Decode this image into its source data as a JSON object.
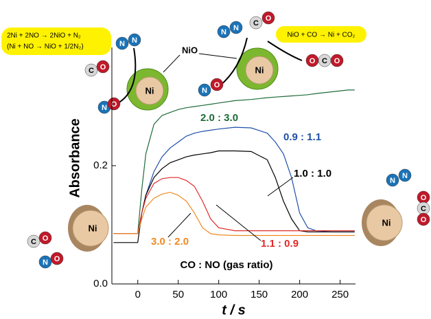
{
  "chart_data": {
    "type": "line",
    "x_label": "t / s",
    "y_label": "Absorbance",
    "annotation": "CO : NO (gas ratio)",
    "x": [
      -30,
      -10,
      0,
      5,
      10,
      20,
      30,
      40,
      50,
      60,
      70,
      80,
      90,
      100,
      120,
      140,
      160,
      170,
      180,
      190,
      200,
      210,
      220,
      240,
      260,
      268
    ],
    "series": [
      {
        "name": "2.0 : 3.0",
        "color": "#1e6b3a",
        "values": [
          0.085,
          0.085,
          0.085,
          0.16,
          0.22,
          0.27,
          0.285,
          0.29,
          0.295,
          0.298,
          0.3,
          0.302,
          0.304,
          0.306,
          0.31,
          0.312,
          0.315,
          0.316,
          0.317,
          0.318,
          0.319,
          0.32,
          0.322,
          0.325,
          0.328,
          0.328
        ]
      },
      {
        "name": "0.9 : 1.1",
        "color": "#1f4fa8",
        "values": [
          0.085,
          0.085,
          0.085,
          0.12,
          0.15,
          0.19,
          0.215,
          0.23,
          0.24,
          0.25,
          0.255,
          0.258,
          0.26,
          0.262,
          0.265,
          0.264,
          0.255,
          0.24,
          0.22,
          0.18,
          0.12,
          0.095,
          0.09,
          0.088,
          0.088,
          0.088
        ]
      },
      {
        "name": "1.0 : 1.0",
        "color": "#000000",
        "values": [
          0.07,
          0.07,
          0.07,
          0.12,
          0.15,
          0.18,
          0.195,
          0.205,
          0.21,
          0.215,
          0.218,
          0.22,
          0.222,
          0.225,
          0.225,
          0.224,
          0.21,
          0.18,
          0.14,
          0.11,
          0.09,
          0.088,
          0.088,
          0.088,
          0.088,
          0.088
        ]
      },
      {
        "name": "1.1 : 0.9",
        "color": "#e02a2a",
        "values": [
          0.085,
          0.085,
          0.085,
          0.12,
          0.145,
          0.17,
          0.178,
          0.18,
          0.18,
          0.175,
          0.165,
          0.14,
          0.11,
          0.095,
          0.09,
          0.09,
          0.09,
          0.09,
          0.09,
          0.09,
          0.09,
          0.09,
          0.09,
          0.09,
          0.09,
          0.09
        ]
      },
      {
        "name": "3.0 : 2.0",
        "color": "#f08a24",
        "values": [
          0.085,
          0.085,
          0.085,
          0.11,
          0.13,
          0.145,
          0.152,
          0.155,
          0.15,
          0.14,
          0.12,
          0.095,
          0.085,
          0.083,
          0.082,
          0.082,
          0.082,
          0.082,
          0.082,
          0.082,
          0.082,
          0.082,
          0.082,
          0.082,
          0.082,
          0.082
        ]
      }
    ],
    "xlim": [
      -32,
      269
    ],
    "ylim": [
      0,
      0.4
    ],
    "xticks": [
      0,
      50,
      100,
      150,
      200,
      250
    ],
    "yticks": [
      {
        "value": 0,
        "label": "0.0"
      },
      {
        "value": 0.2,
        "label": "0.2"
      }
    ]
  },
  "illustration": {
    "ni": "Ni",
    "nio": "NiO",
    "atoms": {
      "N": "N",
      "O": "O",
      "C": "C"
    },
    "equations": [
      "2Ni + 2NO → 2NiO + N₂",
      "(Ni + NO → NiO + 1/2N₂)",
      "NiO + CO → Ni + CO₂"
    ]
  }
}
